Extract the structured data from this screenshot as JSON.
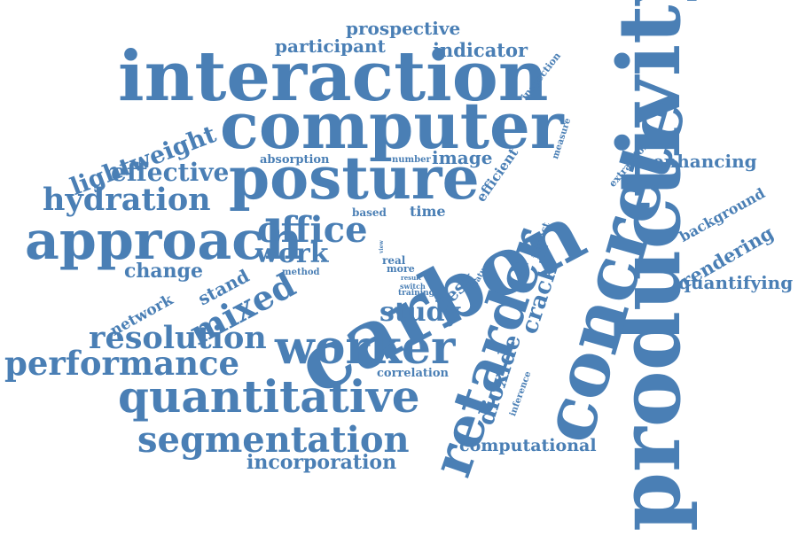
{
  "words": [
    {
      "id": "productivity",
      "text": "productivity"
    },
    {
      "id": "concrete",
      "text": "concrete"
    },
    {
      "id": "carbon",
      "text": "carbon"
    },
    {
      "id": "interaction",
      "text": "interaction"
    },
    {
      "id": "computer",
      "text": "computer"
    },
    {
      "id": "posture",
      "text": "posture"
    },
    {
      "id": "approach",
      "text": "approach"
    },
    {
      "id": "retarder",
      "text": "retarder"
    },
    {
      "id": "worker",
      "text": "worker"
    },
    {
      "id": "quantitative",
      "text": "quantitative"
    },
    {
      "id": "segmentation",
      "text": "segmentation"
    },
    {
      "id": "performance",
      "text": "performance"
    },
    {
      "id": "resolution",
      "text": "resolution"
    },
    {
      "id": "hydration",
      "text": "hydration"
    },
    {
      "id": "office",
      "text": "office"
    },
    {
      "id": "mixed",
      "text": "mixed"
    },
    {
      "id": "study",
      "text": "study"
    },
    {
      "id": "work",
      "text": "work"
    },
    {
      "id": "lightweight",
      "text": "lightweight"
    },
    {
      "id": "effective",
      "text": "effective"
    },
    {
      "id": "incorporation",
      "text": "incorporation"
    },
    {
      "id": "computational",
      "text": "computational"
    },
    {
      "id": "dioxide",
      "text": "dioxide"
    },
    {
      "id": "crack",
      "text": "crack"
    },
    {
      "id": "quantifying",
      "text": "quantifying"
    },
    {
      "id": "enhancing",
      "text": "enhancing"
    },
    {
      "id": "rendering",
      "text": "rendering"
    },
    {
      "id": "background",
      "text": "background"
    },
    {
      "id": "participant",
      "text": "participant"
    },
    {
      "id": "prospective",
      "text": "prospective"
    },
    {
      "id": "indicator",
      "text": "indicator"
    },
    {
      "id": "change",
      "text": "change"
    },
    {
      "id": "network",
      "text": "network"
    },
    {
      "id": "stand",
      "text": "stand"
    },
    {
      "id": "image",
      "text": "image"
    },
    {
      "id": "absorption",
      "text": "absorption"
    },
    {
      "id": "number",
      "text": "number"
    },
    {
      "id": "based",
      "text": "based"
    },
    {
      "id": "time",
      "text": "time"
    },
    {
      "id": "efficient",
      "text": "efficient"
    },
    {
      "id": "desk",
      "text": "desk"
    },
    {
      "id": "real",
      "text": "real"
    },
    {
      "id": "more",
      "text": "more"
    },
    {
      "id": "view",
      "text": "view"
    },
    {
      "id": "result",
      "text": "result"
    },
    {
      "id": "switch",
      "text": "switch"
    },
    {
      "id": "training",
      "text": "training"
    },
    {
      "id": "method",
      "text": "method"
    },
    {
      "id": "feature",
      "text": "feature"
    },
    {
      "id": "impact",
      "text": "impact"
    },
    {
      "id": "measure",
      "text": "measure"
    },
    {
      "id": "extraction",
      "text": "extraction"
    },
    {
      "id": "inspection",
      "text": "inspection"
    },
    {
      "id": "correlation",
      "text": "correlation"
    },
    {
      "id": "inference",
      "text": "inference"
    }
  ],
  "colors": {
    "word": "#4a7fb5",
    "background": "#ffffff"
  }
}
